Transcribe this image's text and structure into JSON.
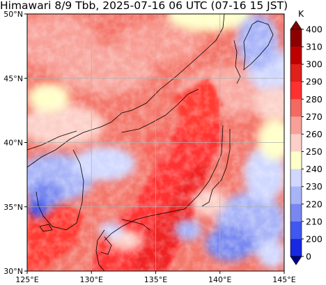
{
  "title": "Himawari 8/9 Tbb, 2025-07-16 06 UTC (07-16 15 JST)",
  "map": {
    "lon_range": [
      125,
      145
    ],
    "lat_range": [
      30,
      50
    ],
    "x_ticks": [
      {
        "value": 125,
        "label": "125°E"
      },
      {
        "value": 130,
        "label": "130°E"
      },
      {
        "value": 135,
        "label": "135°E"
      },
      {
        "value": 140,
        "label": "140°E"
      },
      {
        "value": 145,
        "label": "145°E"
      }
    ],
    "y_ticks": [
      {
        "value": 50,
        "label": "50°N"
      },
      {
        "value": 45,
        "label": "45°N"
      },
      {
        "value": 40,
        "label": "40°N"
      },
      {
        "value": 35,
        "label": "35°N"
      },
      {
        "value": 30,
        "label": "30°N"
      }
    ],
    "grid": true,
    "coastline_color": "#000000"
  },
  "colorbar": {
    "unit": "K",
    "levels": [
      {
        "value": 400,
        "label": "400",
        "color": "#8b0000"
      },
      {
        "value": 310,
        "label": "310",
        "color": "#c00000"
      },
      {
        "value": 300,
        "label": "300",
        "color": "#e0201a"
      },
      {
        "value": 290,
        "label": "290",
        "color": "#ff3030"
      },
      {
        "value": 280,
        "label": "280",
        "color": "#f46a60"
      },
      {
        "value": 270,
        "label": "270",
        "color": "#f8a098"
      },
      {
        "value": 260,
        "label": "260",
        "color": "#fcd0c8"
      },
      {
        "value": 250,
        "label": "250",
        "color": "#ffffc8"
      },
      {
        "value": 240,
        "label": "240",
        "color": "#d0d8ff"
      },
      {
        "value": 230,
        "label": "230",
        "color": "#a8b4f8"
      },
      {
        "value": 220,
        "label": "220",
        "color": "#7888f0"
      },
      {
        "value": 210,
        "label": "210",
        "color": "#4058f0"
      },
      {
        "value": 200,
        "label": "200",
        "color": "#1828e0"
      },
      {
        "value": 0,
        "label": "0",
        "color": "#0000a0"
      }
    ],
    "extend_top_color": "#800000",
    "extend_bottom_color": "#00008b"
  }
}
